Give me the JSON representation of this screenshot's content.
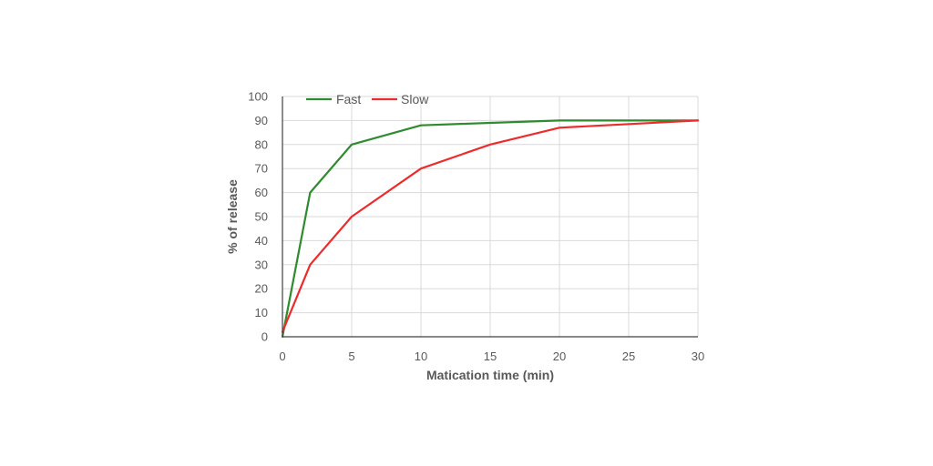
{
  "chart_data": {
    "type": "line",
    "title": "",
    "xlabel": "Matication time (min)",
    "ylabel": "% of release",
    "xlim": [
      0,
      30
    ],
    "ylim": [
      0,
      100
    ],
    "xticks": [
      0,
      5,
      10,
      15,
      20,
      25,
      30
    ],
    "yticks": [
      0,
      10,
      20,
      30,
      40,
      50,
      60,
      70,
      80,
      90,
      100
    ],
    "grid": true,
    "legend_position": "top-left",
    "series": [
      {
        "name": "Fast",
        "color": "#2e8b2e",
        "x": [
          0,
          2,
          5,
          10,
          15,
          20,
          30
        ],
        "y": [
          0,
          60,
          80,
          88,
          89,
          90,
          90
        ]
      },
      {
        "name": "Slow",
        "color": "#ee2b2b",
        "x": [
          0,
          2,
          5,
          10,
          15,
          20,
          30
        ],
        "y": [
          2,
          30,
          50,
          70,
          80,
          87,
          90
        ]
      }
    ]
  }
}
